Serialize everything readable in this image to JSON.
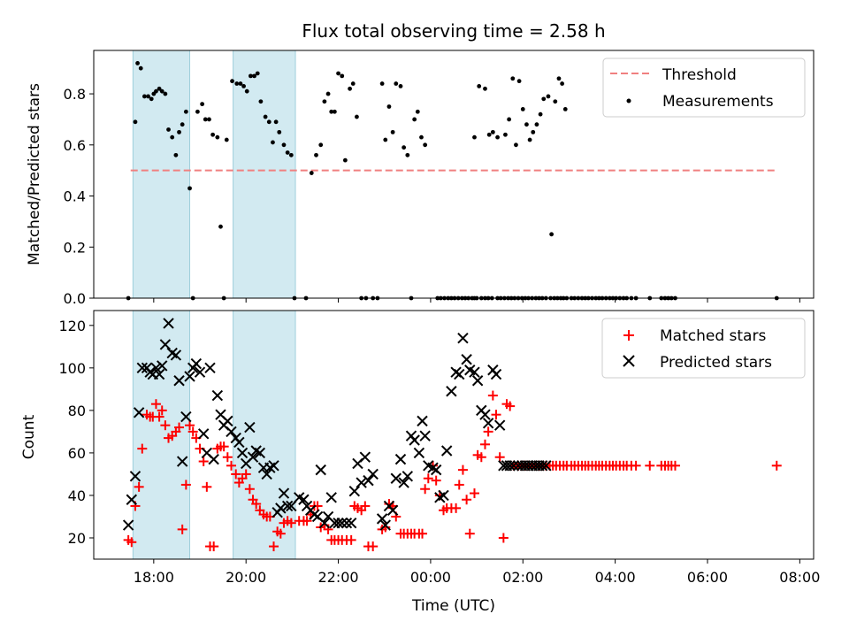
{
  "title": "Flux total observing time = 2.58 h",
  "xlabel": "Time (UTC)",
  "x_ticks": [
    "18:00",
    "20:00",
    "22:00",
    "00:00",
    "02:00",
    "04:00",
    "06:00",
    "08:00"
  ],
  "top_panel": {
    "ylabel": "Matched/Predicted stars",
    "y_ticks": [
      "0.0",
      "0.2",
      "0.4",
      "0.6",
      "0.8"
    ],
    "legend": {
      "threshold": "Threshold",
      "measurements": "Measurements"
    }
  },
  "bottom_panel": {
    "ylabel": "Count",
    "y_ticks": [
      "20",
      "40",
      "60",
      "80",
      "100",
      "120"
    ],
    "legend": {
      "matched": "Matched stars",
      "predicted": "Predicted stars"
    }
  },
  "colors": {
    "threshold": "#f08080",
    "measurements": "#000000",
    "matched": "#ff0000",
    "predicted": "#000000",
    "observing_window": "#add8e6"
  },
  "chart_data": [
    {
      "type": "scatter",
      "panel": "top",
      "title": "Flux total observing time = 2.58 h",
      "xlabel": "",
      "ylabel": "Matched/Predicted stars",
      "x_unit": "hours since 00:00 UTC (negative = previous day)",
      "xlim": [
        -7.3,
        8.3
      ],
      "ylim": [
        0.0,
        0.97
      ],
      "grid": false,
      "legend_position": "top-right",
      "threshold": 0.5,
      "threshold_x_range": [
        -6.5,
        7.5
      ],
      "observing_windows": [
        [
          -6.45,
          -5.22
        ],
        [
          -4.28,
          -2.93
        ]
      ],
      "series": [
        {
          "name": "Measurements",
          "x": [
            -6.55,
            -6.4,
            -6.35,
            -6.28,
            -6.2,
            -6.12,
            -6.05,
            -6.0,
            -5.95,
            -5.88,
            -5.82,
            -5.75,
            -5.68,
            -5.6,
            -5.52,
            -5.45,
            -5.38,
            -5.3,
            -5.22,
            -5.15,
            -5.05,
            -4.95,
            -4.88,
            -4.8,
            -4.72,
            -4.62,
            -4.55,
            -4.48,
            -4.42,
            -4.3,
            -4.2,
            -4.12,
            -4.05,
            -3.98,
            -3.9,
            -3.82,
            -3.75,
            -3.68,
            -3.58,
            -3.5,
            -3.42,
            -3.35,
            -3.28,
            -3.18,
            -3.1,
            -3.02,
            -2.95,
            -2.7,
            -2.58,
            -2.48,
            -2.38,
            -2.3,
            -2.22,
            -2.15,
            -2.08,
            -2.0,
            -1.92,
            -1.85,
            -1.75,
            -1.68,
            -1.6,
            -1.5,
            -1.4,
            -1.25,
            -1.15,
            -1.05,
            -0.98,
            -0.9,
            -0.82,
            -0.75,
            -0.65,
            -0.58,
            -0.5,
            -0.42,
            -0.35,
            -0.28,
            -0.2,
            -0.12,
            0.15,
            0.22,
            0.3,
            0.38,
            0.45,
            0.52,
            0.6,
            0.68,
            0.75,
            0.82,
            0.9,
            0.95,
            1.0,
            1.1,
            1.18,
            1.25,
            1.33,
            1.45,
            1.52,
            1.6,
            1.68,
            1.75,
            1.82,
            1.9,
            1.98,
            2.05,
            2.12,
            2.2,
            2.28,
            2.35,
            2.42,
            2.5,
            2.6,
            2.68,
            2.75,
            2.82,
            2.88,
            2.95,
            3.05,
            3.12,
            3.2,
            3.28,
            3.35,
            3.42,
            3.5,
            3.58,
            3.65,
            3.72,
            3.8,
            3.88,
            3.95,
            4.02,
            4.1,
            4.18,
            4.25,
            4.35,
            4.45,
            4.75,
            5.0,
            5.08,
            5.15,
            5.22,
            5.3,
            7.5
          ],
          "y": [
            0.0,
            0.69,
            0.92,
            0.9,
            0.79,
            0.79,
            0.78,
            0.8,
            0.81,
            0.82,
            0.81,
            0.8,
            0.66,
            0.63,
            0.56,
            0.65,
            0.68,
            0.73,
            0.43,
            0.0,
            0.73,
            0.76,
            0.7,
            0.7,
            0.64,
            0.63,
            0.28,
            0.0,
            0.62,
            0.85,
            0.84,
            0.84,
            0.83,
            0.81,
            0.87,
            0.87,
            0.88,
            0.77,
            0.71,
            0.69,
            0.61,
            0.69,
            0.65,
            0.6,
            0.57,
            0.56,
            0.0,
            0.0,
            0.49,
            0.56,
            0.6,
            0.77,
            0.8,
            0.73,
            0.73,
            0.88,
            0.87,
            0.54,
            0.82,
            0.84,
            0.71,
            0.0,
            0.0,
            0.0,
            0.0,
            0.84,
            0.62,
            0.75,
            0.65,
            0.84,
            0.83,
            0.59,
            0.56,
            0.0,
            0.7,
            0.73,
            0.63,
            0.6,
            0.0,
            0.0,
            0.0,
            0.0,
            0.0,
            0.0,
            0.0,
            0.0,
            0.0,
            0.0,
            0.0,
            0.0,
            0.0,
            0.0,
            0.0,
            0.0,
            0.0,
            0.0,
            0.0,
            0.0,
            0.0,
            0.0,
            0.0,
            0.0,
            0.0,
            0.0,
            0.0,
            0.0,
            0.0,
            0.0,
            0.0,
            0.0,
            0.0,
            0.0,
            0.0,
            0.0,
            0.0,
            0.0,
            0.0,
            0.0,
            0.0,
            0.0,
            0.0,
            0.0,
            0.0,
            0.0,
            0.0,
            0.0,
            0.0,
            0.0,
            0.0,
            0.0,
            0.0,
            0.0,
            0.0,
            0.0,
            0.0,
            0.0,
            0.0,
            0.0,
            0.0,
            0.0,
            0.0,
            0.0
          ],
          "extra_points": {
            "x": [
              0.95,
              1.05,
              1.18,
              1.27,
              1.35,
              1.45,
              1.62,
              1.7,
              1.78,
              1.85,
              1.92,
              2.0,
              2.08,
              2.15,
              2.22,
              2.3,
              2.38,
              2.45,
              2.55,
              2.62,
              2.7,
              2.78,
              2.85,
              2.92
            ],
            "y": [
              0.63,
              0.83,
              0.82,
              0.64,
              0.65,
              0.63,
              0.64,
              0.7,
              0.86,
              0.6,
              0.85,
              0.74,
              0.68,
              0.62,
              0.65,
              0.68,
              0.72,
              0.78,
              0.79,
              0.25,
              0.77,
              0.86,
              0.84,
              0.74
            ]
          }
        }
      ]
    },
    {
      "type": "scatter",
      "panel": "bottom",
      "xlabel": "Time (UTC)",
      "ylabel": "Count",
      "x_unit": "hours since 00:00 UTC (negative = previous day)",
      "xlim": [
        -7.3,
        8.3
      ],
      "ylim": [
        10,
        127
      ],
      "grid": false,
      "legend_position": "top-right",
      "observing_windows": [
        [
          -6.45,
          -5.22
        ],
        [
          -4.28,
          -2.93
        ]
      ],
      "series": [
        {
          "name": "Matched stars",
          "marker": "+",
          "x": [
            -6.55,
            -6.48,
            -6.4,
            -6.32,
            -6.25,
            -6.15,
            -6.08,
            -6.02,
            -5.95,
            -5.88,
            -5.82,
            -5.75,
            -5.68,
            -5.6,
            -5.52,
            -5.45,
            -5.38,
            -5.3,
            -5.22,
            -5.15,
            -5.08,
            -5.0,
            -4.92,
            -4.85,
            -4.78,
            -4.7,
            -4.62,
            -4.55,
            -4.48,
            -4.4,
            -4.32,
            -4.22,
            -4.15,
            -4.08,
            -4.0,
            -3.92,
            -3.85,
            -3.78,
            -3.7,
            -3.62,
            -3.55,
            -3.48,
            -3.4,
            -3.32,
            -3.25,
            -3.18,
            -3.1,
            -3.02,
            -2.85,
            -2.75,
            -2.68,
            -2.6,
            -2.52,
            -2.45,
            -2.38,
            -2.3,
            -2.22,
            -2.15,
            -2.08,
            -2.0,
            -1.92,
            -1.82,
            -1.72,
            -1.65,
            -1.58,
            -1.5,
            -1.42,
            -1.35,
            -1.25,
            -1.05,
            -0.98,
            -0.9,
            -0.82,
            -0.75,
            -0.65,
            -0.58,
            -0.5,
            -0.42,
            -0.35,
            -0.25,
            -0.18,
            -0.12,
            -0.05,
            0.05,
            0.12,
            0.2,
            0.28,
            0.35,
            0.45,
            0.55,
            0.62,
            0.7,
            0.78,
            0.85,
            0.95,
            1.02,
            1.1,
            1.18,
            1.25,
            1.35,
            1.42,
            1.5,
            1.58,
            1.65,
            1.72,
            1.8,
            1.9,
            1.98,
            2.05,
            2.12,
            2.2,
            2.28,
            2.35,
            2.42,
            2.5,
            2.58,
            2.65,
            2.72,
            2.8,
            2.88,
            2.95,
            3.05,
            3.12,
            3.2,
            3.28,
            3.35,
            3.42,
            3.5,
            3.58,
            3.65,
            3.72,
            3.8,
            3.88,
            3.95,
            4.02,
            4.1,
            4.18,
            4.25,
            4.35,
            4.45,
            4.75,
            5.0,
            5.08,
            5.15,
            5.22,
            5.3,
            7.5
          ],
          "y": [
            19,
            18,
            35,
            44,
            62,
            78,
            77,
            77,
            83,
            77,
            80,
            73,
            67,
            68,
            70,
            72,
            24,
            45,
            73,
            70,
            67,
            62,
            56,
            44,
            16,
            16,
            62,
            63,
            63,
            58,
            54,
            50,
            46,
            48,
            50,
            43,
            38,
            36,
            33,
            31,
            30,
            30,
            16,
            23,
            22,
            27,
            28,
            27,
            28,
            28,
            28,
            31,
            35,
            35,
            25,
            26,
            24,
            19,
            19,
            19,
            19,
            19,
            19,
            35,
            34,
            33,
            35,
            16,
            16,
            24,
            25,
            36,
            35,
            30,
            22,
            22,
            22,
            22,
            22,
            22,
            22,
            43,
            48,
            54,
            47,
            40,
            33,
            34,
            34,
            34,
            45,
            52,
            38,
            22,
            41,
            59,
            58,
            64,
            70,
            87,
            78,
            58,
            20,
            83,
            82,
            54,
            54,
            54,
            54,
            54,
            54,
            54,
            54,
            54,
            54,
            54,
            54,
            54,
            54,
            54,
            54,
            54,
            54,
            54,
            54,
            54,
            54,
            54,
            54,
            54,
            54,
            54,
            54,
            54,
            54,
            54,
            54,
            54,
            54,
            54,
            54,
            54,
            54,
            54,
            54,
            54,
            54
          ]
        },
        {
          "name": "Predicted stars",
          "marker": "x",
          "x": [
            -6.55,
            -6.48,
            -6.4,
            -6.32,
            -6.25,
            -6.15,
            -6.08,
            -6.02,
            -5.95,
            -5.88,
            -5.82,
            -5.75,
            -5.68,
            -5.6,
            -5.52,
            -5.45,
            -5.38,
            -5.3,
            -5.22,
            -5.15,
            -5.08,
            -5.0,
            -4.92,
            -4.85,
            -4.78,
            -4.7,
            -4.62,
            -4.55,
            -4.48,
            -4.4,
            -4.32,
            -4.22,
            -4.15,
            -4.08,
            -4.0,
            -3.92,
            -3.85,
            -3.78,
            -3.7,
            -3.62,
            -3.55,
            -3.48,
            -3.4,
            -3.32,
            -3.25,
            -3.18,
            -3.1,
            -3.02,
            -2.85,
            -2.75,
            -2.68,
            -2.6,
            -2.52,
            -2.45,
            -2.38,
            -2.3,
            -2.22,
            -2.15,
            -2.08,
            -2.0,
            -1.92,
            -1.82,
            -1.72,
            -1.65,
            -1.58,
            -1.5,
            -1.42,
            -1.35,
            -1.25,
            -1.05,
            -0.98,
            -0.9,
            -0.82,
            -0.75,
            -0.65,
            -0.58,
            -0.5,
            -0.42,
            -0.35,
            -0.25,
            -0.18,
            -0.12,
            -0.05,
            0.05,
            0.12,
            0.2,
            0.28,
            0.35,
            0.45,
            0.55,
            0.62,
            0.7,
            0.78,
            0.85,
            0.95,
            1.02,
            1.1,
            1.18,
            1.25,
            1.35,
            1.42,
            1.5,
            1.58,
            1.65,
            1.72,
            1.8,
            1.9,
            1.98,
            2.05,
            2.12,
            2.2,
            2.28,
            2.35,
            2.42,
            2.5
          ],
          "y": [
            26,
            38,
            49,
            79,
            100,
            100,
            98,
            97,
            100,
            97,
            101,
            111,
            121,
            107,
            106,
            94,
            56,
            77,
            96,
            100,
            102,
            98,
            69,
            60,
            100,
            57,
            87,
            78,
            73,
            75,
            70,
            67,
            65,
            60,
            55,
            72,
            58,
            61,
            60,
            53,
            50,
            53,
            54,
            32,
            34,
            41,
            35,
            35,
            39,
            38,
            35,
            33,
            31,
            30,
            52,
            27,
            30,
            39,
            27,
            27,
            27,
            27,
            27,
            42,
            55,
            46,
            58,
            47,
            50,
            29,
            26,
            35,
            33,
            48,
            57,
            46,
            49,
            68,
            66,
            60,
            75,
            68,
            54,
            53,
            52,
            39,
            40,
            61,
            89,
            98,
            97,
            114,
            104,
            99,
            98,
            94,
            80,
            78,
            74,
            99,
            97,
            73,
            54,
            54,
            54,
            54,
            54,
            54,
            54,
            54,
            54,
            54,
            54,
            54,
            54
          ]
        }
      ]
    }
  ]
}
